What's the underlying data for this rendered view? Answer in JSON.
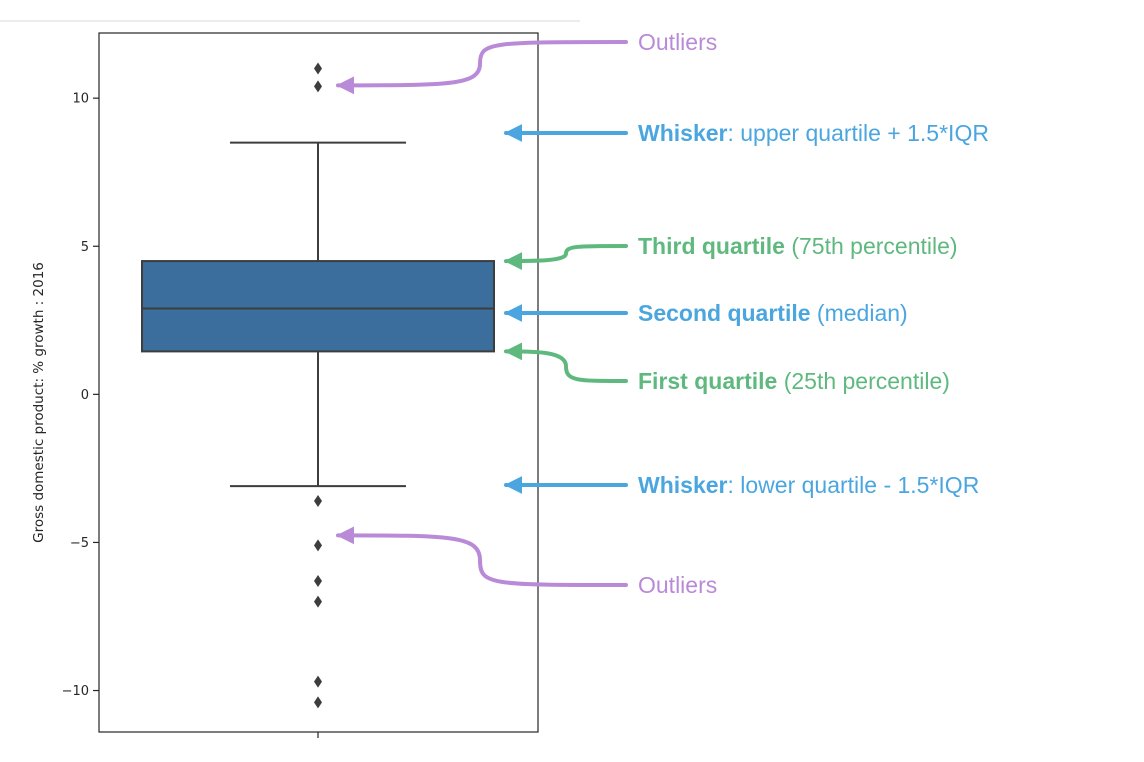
{
  "chart_data": {
    "type": "box",
    "ylabel": "Gross domestic product: % growth : 2016",
    "xlabel": "",
    "ylim": [
      -11.4,
      12.2
    ],
    "yticks": [
      10,
      5,
      0,
      -5,
      -10
    ],
    "ytick_labels": [
      "10",
      "5",
      "0",
      "−5",
      "−10"
    ],
    "grid": false,
    "box": {
      "whisker_high": 8.5,
      "q3": 4.5,
      "median": 2.9,
      "q1": 1.45,
      "whisker_low": -3.1,
      "outliers": [
        11.0,
        10.4,
        -3.6,
        -5.1,
        -6.3,
        -7.0,
        -9.7,
        -10.4
      ]
    },
    "box_color": "#3b6e9c"
  },
  "annotations": [
    {
      "key": "outliers-top",
      "bold": "",
      "text": "Outliers",
      "color": "#b98ad8",
      "target": 10.4
    },
    {
      "key": "whisker-upper",
      "bold": "Whisker",
      "text": ": upper quartile + 1.5*IQR",
      "color": "#4ba6e0",
      "target": 8.5
    },
    {
      "key": "third-quartile",
      "bold": "Third quartile",
      "text": " (75th percentile)",
      "color": "#5fb97f",
      "target": 4.5
    },
    {
      "key": "second-quartile",
      "bold": "Second quartile",
      "text": " (median)",
      "color": "#4ba6e0",
      "target": 2.9
    },
    {
      "key": "first-quartile",
      "bold": "First quartile",
      "text": " (25th percentile)",
      "color": "#5fb97f",
      "target": 1.45
    },
    {
      "key": "whisker-lower",
      "bold": "Whisker",
      "text": ": lower quartile - 1.5*IQR",
      "color": "#4ba6e0",
      "target": -3.1
    },
    {
      "key": "outliers-bottom",
      "bold": "",
      "text": "Outliers",
      "color": "#b98ad8",
      "target": -5.1
    }
  ]
}
